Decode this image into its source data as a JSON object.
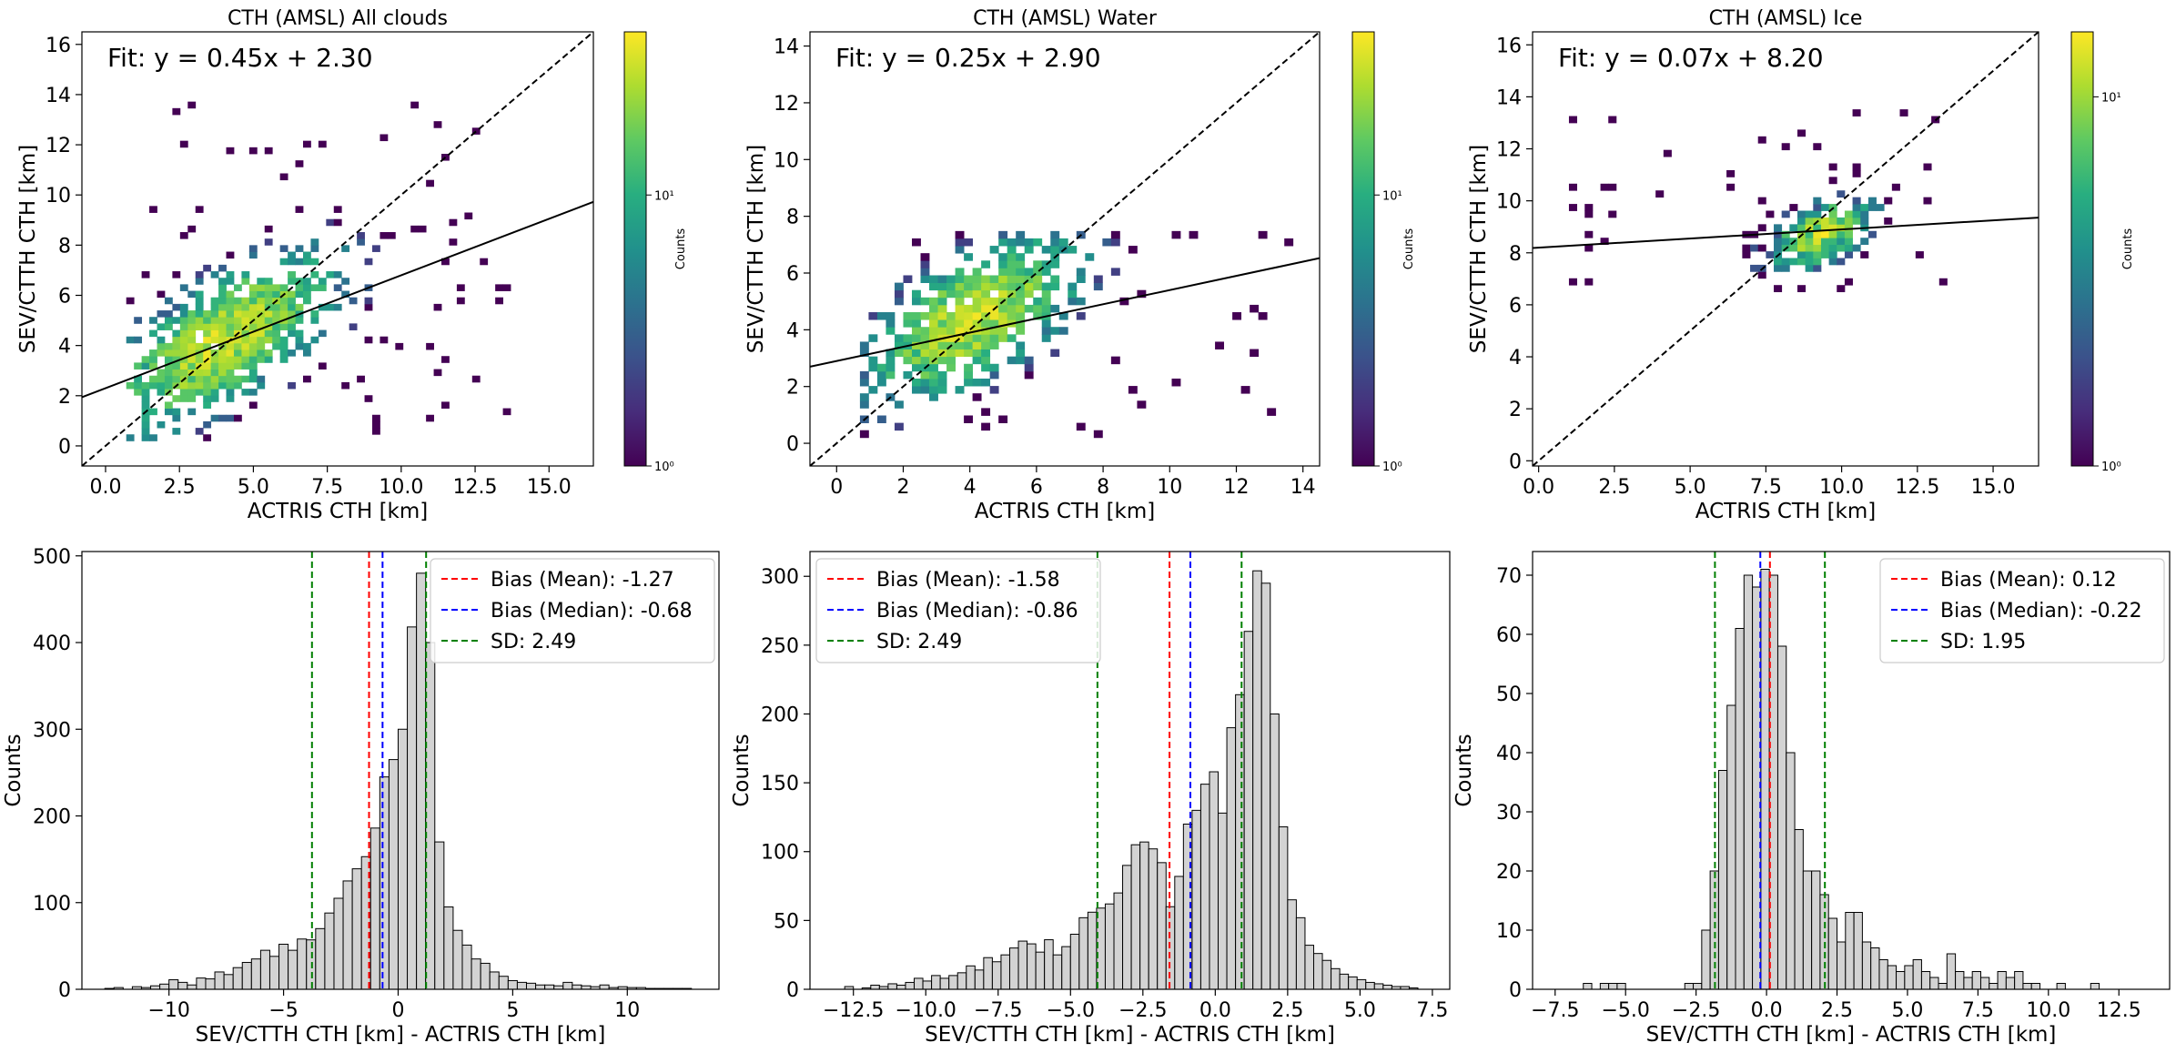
{
  "figure": {
    "colorbar_label": "Counts",
    "colorbar_ticks": [
      "10⁰",
      "10¹"
    ]
  },
  "chart_data": [
    {
      "type": "heatmap",
      "title": "CTH (AMSL) All clouds",
      "xlabel": "ACTRIS CTH [km]",
      "ylabel": "SEV/CTTH CTH [km]",
      "annotation": "Fit: y = 0.45x + 2.30",
      "fit": {
        "slope": 0.45,
        "intercept": 2.3
      },
      "one_to_one_line": true,
      "xlim": [
        -0.8,
        16.5
      ],
      "ylim": [
        -0.8,
        16.5
      ],
      "xticks": [
        0,
        2.5,
        5,
        7.5,
        10,
        12.5,
        15
      ],
      "xtick_labels": [
        "0.0",
        "2.5",
        "5.0",
        "7.5",
        "10.0",
        "12.5",
        "15.0"
      ],
      "yticks": [
        0,
        2,
        4,
        6,
        8,
        10,
        12,
        14,
        16
      ],
      "ytick_labels": [
        "0",
        "2",
        "4",
        "6",
        "8",
        "10",
        "12",
        "14",
        "16"
      ],
      "colorbar": {
        "label": "Counts",
        "scale": "log",
        "range": [
          1,
          40
        ],
        "ticks": [
          1,
          10
        ],
        "tick_labels": [
          "10⁰",
          "10¹"
        ]
      },
      "density": {
        "x_range": [
          0.7,
          13.5
        ],
        "y_range": [
          0.2,
          13.5
        ],
        "cx": 3.9,
        "cy": 4.1,
        "sx": 2.2,
        "sy": 2.0,
        "corr": 0.7,
        "peak": 40
      }
    },
    {
      "type": "heatmap",
      "title": "CTH (AMSL) Water",
      "xlabel": "ACTRIS CTH [km]",
      "ylabel": "SEV/CTTH CTH [km]",
      "annotation": "Fit: y = 0.25x + 2.90",
      "fit": {
        "slope": 0.25,
        "intercept": 2.9
      },
      "one_to_one_line": true,
      "xlim": [
        -0.8,
        14.5
      ],
      "ylim": [
        -0.8,
        14.5
      ],
      "xticks": [
        0,
        2,
        4,
        6,
        8,
        10,
        12,
        14
      ],
      "xtick_labels": [
        "0",
        "2",
        "4",
        "6",
        "8",
        "10",
        "12",
        "14"
      ],
      "yticks": [
        0,
        2,
        4,
        6,
        8,
        10,
        12,
        14
      ],
      "ytick_labels": [
        "0",
        "2",
        "4",
        "6",
        "8",
        "10",
        "12",
        "14"
      ],
      "colorbar": {
        "label": "Counts",
        "scale": "log",
        "range": [
          1,
          40
        ],
        "ticks": [
          1,
          10
        ],
        "tick_labels": [
          "10⁰",
          "10¹"
        ]
      },
      "density": {
        "x_range": [
          0.7,
          13.5
        ],
        "y_range": [
          0.2,
          7.4
        ],
        "cx": 4.0,
        "cy": 4.3,
        "sx": 1.8,
        "sy": 1.6,
        "corr": 0.6,
        "peak": 40
      }
    },
    {
      "type": "heatmap",
      "title": "CTH (AMSL) Ice",
      "xlabel": "ACTRIS CTH [km]",
      "ylabel": "SEV/CTTH CTH [km]",
      "annotation": "Fit: y = 0.07x + 8.20",
      "fit": {
        "slope": 0.07,
        "intercept": 8.2
      },
      "one_to_one_line": true,
      "xlim": [
        -0.2,
        16.5
      ],
      "ylim": [
        -0.2,
        16.5
      ],
      "xticks": [
        0,
        2.5,
        5,
        7.5,
        10,
        12.5,
        15
      ],
      "xtick_labels": [
        "0.0",
        "2.5",
        "5.0",
        "7.5",
        "10.0",
        "12.5",
        "15.0"
      ],
      "yticks": [
        0,
        2,
        4,
        6,
        8,
        10,
        12,
        14,
        16
      ],
      "ytick_labels": [
        "0",
        "2",
        "4",
        "6",
        "8",
        "10",
        "12",
        "14",
        "16"
      ],
      "colorbar": {
        "label": "Counts",
        "scale": "log",
        "range": [
          1,
          15
        ],
        "ticks": [
          1,
          10
        ],
        "tick_labels": [
          "10⁰",
          "10¹"
        ]
      },
      "density": {
        "x_range": [
          1.0,
          13.5
        ],
        "y_range": [
          6.5,
          13.5
        ],
        "cx": 9.2,
        "cy": 8.6,
        "sx": 1.1,
        "sy": 0.9,
        "corr": 0.5,
        "peak": 15
      }
    },
    {
      "type": "bar",
      "subtype": "histogram",
      "xlabel": "SEV/CTTH CTH [km] - ACTRIS CTH [km]",
      "ylabel": "Counts",
      "xlim": [
        -13.8,
        14.0
      ],
      "ylim": [
        0,
        505
      ],
      "xticks": [
        -10,
        -5,
        0,
        5,
        10
      ],
      "xtick_labels": [
        "−10",
        "−5",
        "0",
        "5",
        "10"
      ],
      "yticks": [
        0,
        100,
        200,
        300,
        400,
        500
      ],
      "ytick_labels": [
        "0",
        "100",
        "200",
        "300",
        "400",
        "500"
      ],
      "bin_start": -12.8,
      "bin_width": 0.4,
      "values": [
        1,
        2,
        0,
        3,
        2,
        4,
        6,
        11,
        8,
        5,
        13,
        12,
        20,
        17,
        25,
        31,
        35,
        45,
        38,
        52,
        45,
        58,
        57,
        70,
        88,
        105,
        125,
        139,
        153,
        186,
        245,
        265,
        300,
        418,
        480,
        400,
        170,
        95,
        68,
        51,
        35,
        30,
        20,
        15,
        10,
        8,
        7,
        5,
        5,
        4,
        8,
        5,
        4,
        3,
        5,
        2,
        3,
        2,
        2,
        1,
        1,
        1,
        1,
        1
      ],
      "vlines": [
        {
          "label": "Bias (Mean): -1.27",
          "x": -1.27,
          "color": "#ff0000"
        },
        {
          "label": "Bias (Median): -0.68",
          "x": -0.68,
          "color": "#0000ff"
        },
        {
          "label": "SD: 2.49",
          "x": -3.76,
          "color": "#008000"
        },
        {
          "label": "",
          "x": 1.22,
          "color": "#008000"
        }
      ],
      "legend": {
        "placement": "upper right",
        "entries": [
          "Bias (Mean): -1.27",
          "Bias (Median): -0.68",
          "SD: 2.49"
        ]
      }
    },
    {
      "type": "bar",
      "subtype": "histogram",
      "xlabel": "SEV/CTTH CTH [km] - ACTRIS CTH [km]",
      "ylabel": "Counts",
      "xlim": [
        -14.0,
        8.1
      ],
      "ylim": [
        0,
        318
      ],
      "xticks": [
        -12.5,
        -10,
        -7.5,
        -5,
        -2.5,
        0,
        2.5,
        5,
        7.5
      ],
      "xtick_labels": [
        "−12.5",
        "−10.0",
        "−7.5",
        "−5.0",
        "−2.5",
        "0.0",
        "2.5",
        "5.0",
        "7.5"
      ],
      "yticks": [
        0,
        50,
        100,
        150,
        200,
        250,
        300
      ],
      "ytick_labels": [
        "0",
        "50",
        "100",
        "150",
        "200",
        "250",
        "300"
      ],
      "bin_start": -12.8,
      "bin_width": 0.3,
      "values": [
        2,
        0,
        1,
        3,
        2,
        4,
        3,
        5,
        8,
        6,
        10,
        8,
        10,
        12,
        17,
        14,
        23,
        20,
        25,
        30,
        35,
        33,
        27,
        36,
        25,
        31,
        40,
        52,
        56,
        59,
        62,
        70,
        90,
        105,
        107,
        102,
        92,
        60,
        82,
        120,
        130,
        149,
        158,
        128,
        190,
        214,
        260,
        304,
        295,
        200,
        118,
        65,
        52,
        32,
        26,
        21,
        15,
        11,
        9,
        7,
        5,
        4,
        3,
        2,
        2,
        1
      ],
      "vlines": [
        {
          "label": "Bias (Mean): -1.58",
          "x": -1.58,
          "color": "#ff0000"
        },
        {
          "label": "Bias (Median): -0.86",
          "x": -0.86,
          "color": "#0000ff"
        },
        {
          "label": "SD: 2.49",
          "x": -4.07,
          "color": "#008000"
        },
        {
          "label": "",
          "x": 0.91,
          "color": "#008000"
        }
      ],
      "legend": {
        "placement": "upper left",
        "entries": [
          "Bias (Mean): -1.58",
          "Bias (Median): -0.86",
          "SD: 2.49"
        ]
      }
    },
    {
      "type": "bar",
      "subtype": "histogram",
      "xlabel": "SEV/CTTH CTH [km] - ACTRIS CTH [km]",
      "ylabel": "Counts",
      "xlim": [
        -8.3,
        14.3
      ],
      "ylim": [
        0,
        74
      ],
      "xticks": [
        -7.5,
        -5,
        -2.5,
        0,
        2.5,
        5,
        7.5,
        10,
        12.5
      ],
      "xtick_labels": [
        "−7.5",
        "−5.0",
        "−2.5",
        "0.0",
        "2.5",
        "5.0",
        "7.5",
        "10.0",
        "12.5"
      ],
      "yticks": [
        0,
        10,
        20,
        30,
        40,
        50,
        60,
        70
      ],
      "ytick_labels": [
        "0",
        "10",
        "20",
        "30",
        "40",
        "50",
        "60",
        "70"
      ],
      "bin_start": -6.5,
      "bin_width": 0.3,
      "values": [
        1,
        0,
        1,
        1,
        1,
        0,
        0,
        0,
        0,
        0,
        0,
        0,
        1,
        1,
        10,
        20,
        37,
        48,
        61,
        70,
        68,
        71,
        70,
        58,
        40,
        27,
        20,
        20,
        16,
        12,
        8,
        13,
        13,
        8,
        7,
        5,
        4,
        3,
        4,
        5,
        3,
        2,
        1,
        6,
        3,
        2,
        3,
        2,
        1,
        3,
        2,
        3,
        1,
        1,
        0,
        0,
        1,
        0,
        0,
        0,
        1
      ],
      "vlines": [
        {
          "label": "Bias (Mean): 0.12",
          "x": 0.12,
          "color": "#ff0000"
        },
        {
          "label": "Bias (Median): -0.22",
          "x": -0.22,
          "color": "#0000ff"
        },
        {
          "label": "SD: 1.95",
          "x": -1.83,
          "color": "#008000"
        },
        {
          "label": "",
          "x": 2.07,
          "color": "#008000"
        }
      ],
      "legend": {
        "placement": "upper right",
        "entries": [
          "Bias (Mean): 0.12",
          "Bias (Median): -0.22",
          "SD: 1.95"
        ]
      }
    }
  ]
}
